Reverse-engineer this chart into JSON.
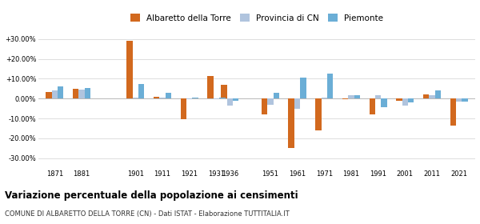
{
  "years": [
    1871,
    1881,
    1901,
    1911,
    1921,
    1931,
    1936,
    1951,
    1961,
    1971,
    1981,
    1991,
    2001,
    2011,
    2021
  ],
  "albaretto": [
    3.5,
    5.0,
    29.0,
    1.0,
    -10.5,
    11.5,
    7.0,
    -8.0,
    -25.0,
    -16.0,
    -0.5,
    -8.0,
    -1.0,
    2.0,
    -13.5
  ],
  "provincia_cn": [
    4.0,
    4.5,
    0.5,
    0.5,
    -0.5,
    -0.5,
    -3.5,
    -3.0,
    -5.0,
    0.5,
    1.5,
    1.5,
    -3.5,
    1.5,
    -1.5
  ],
  "piemonte": [
    6.0,
    5.5,
    7.5,
    3.0,
    0.5,
    0.5,
    -1.0,
    3.0,
    10.5,
    12.5,
    1.5,
    -4.5,
    -2.0,
    4.0,
    -1.5
  ],
  "color_albaretto": "#d2691e",
  "color_provincia": "#b0c4de",
  "color_piemonte": "#6baed6",
  "title": "Variazione percentuale della popolazione ai censimenti",
  "subtitle": "COMUNE DI ALBARETTO DELLA TORRE (CN) - Dati ISTAT - Elaborazione TUTTITALIA.IT",
  "legend_labels": [
    "Albaretto della Torre",
    "Provincia di CN",
    "Piemonte"
  ],
  "ylim": [
    -35,
    35
  ],
  "yticks": [
    -30,
    -20,
    -10,
    0,
    10,
    20,
    30
  ],
  "bar_width": 2.2,
  "background_color": "#ffffff",
  "grid_color": "#dddddd"
}
